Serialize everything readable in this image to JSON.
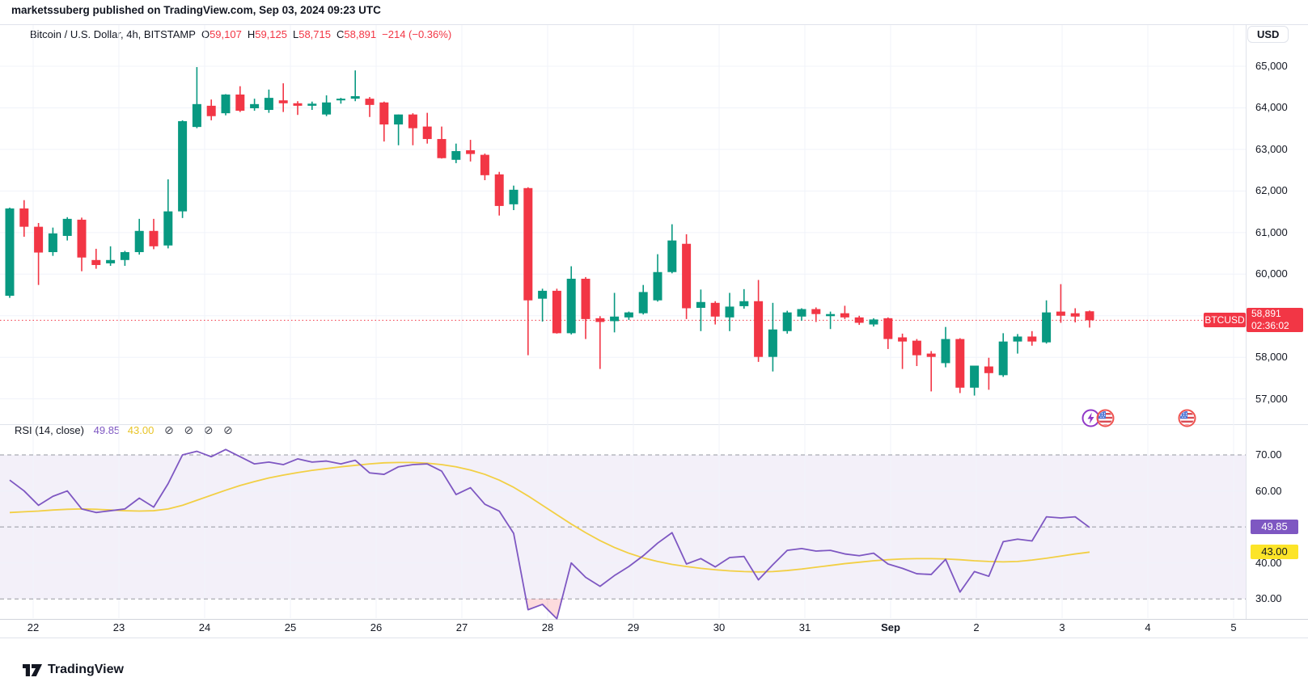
{
  "header": {
    "published_text": "marketssuberg published on TradingView.com, Sep 03, 2024 09:23 UTC"
  },
  "main_legend": {
    "symbol_title": "Bitcoin / U.S. Dollar, 4h, BITSTAMP",
    "ohlc": [
      {
        "label": "O",
        "value": "59,107"
      },
      {
        "label": "H",
        "value": "59,125"
      },
      {
        "label": "L",
        "value": "58,715"
      },
      {
        "label": "C",
        "value": "58,891"
      }
    ],
    "change": "−214 (−0.36%)"
  },
  "currency_button": "USD",
  "last_price": {
    "symbol_tag": "BTCUSD",
    "price": "58,891",
    "countdown": "02:36:02"
  },
  "rsi_legend": {
    "title": "RSI",
    "params": "(14, close)",
    "value": "49.85",
    "ma_value": "43.00",
    "hidden_icon": "⊘"
  },
  "rsi_axis_tags": {
    "value": "49.85",
    "ma": "43.00"
  },
  "event_markers": [
    {
      "icon": "lightning",
      "color": "#9139c8"
    },
    {
      "icon": "us-flag",
      "color": "#ef5350"
    },
    {
      "icon": "us-flag",
      "color": "#ef5350"
    }
  ],
  "footer": {
    "brand": "TradingView"
  },
  "colors": {
    "up": "#089981",
    "down": "#f23645",
    "grid": "#f0f3fa",
    "rsi_line": "#7e57c2",
    "rsi_ma_line": "#f2cf44",
    "rsi_band_fill": "rgba(126,87,194,0.09)",
    "rsi_dash": "#9598a1",
    "oversold_fill": "rgba(242,54,69,0.18)",
    "price_line": "#f23645"
  },
  "chart_data": {
    "type": "candlestick",
    "title": "Bitcoin / U.S. Dollar, 4h, BITSTAMP",
    "symbol": "BTCUSD",
    "exchange": "BITSTAMP",
    "interval": "4h",
    "ohlc_current": {
      "open": 59107,
      "high": 59125,
      "low": 58715,
      "close": 58891,
      "change": -214,
      "change_pct": -0.36
    },
    "price_axis": {
      "min": 57000,
      "max": 65000,
      "tick_step": 1000,
      "labels": [
        "65,000",
        "64,000",
        "63,000",
        "62,000",
        "61,000",
        "60,000",
        "59,000",
        "58,000",
        "57,000"
      ]
    },
    "time_axis_labels": [
      "22",
      "23",
      "24",
      "25",
      "26",
      "27",
      "28",
      "29",
      "30",
      "31",
      "Sep",
      "2",
      "3",
      "4",
      "5"
    ],
    "candles": [
      [
        59480,
        61600,
        59430,
        61580
      ],
      [
        61580,
        61780,
        60900,
        61140
      ],
      [
        61140,
        61230,
        59740,
        60520
      ],
      [
        60530,
        61120,
        60440,
        60980
      ],
      [
        60920,
        61370,
        60810,
        61330
      ],
      [
        61310,
        61360,
        60070,
        60400
      ],
      [
        60340,
        60610,
        60130,
        60220
      ],
      [
        60260,
        60670,
        60200,
        60340
      ],
      [
        60340,
        60560,
        60200,
        60530
      ],
      [
        60530,
        61330,
        60470,
        61040
      ],
      [
        61040,
        61330,
        60600,
        60670
      ],
      [
        60690,
        62280,
        60620,
        61510
      ],
      [
        61510,
        63700,
        61350,
        63680
      ],
      [
        63540,
        64980,
        63510,
        64090
      ],
      [
        64050,
        64200,
        63700,
        63800
      ],
      [
        63870,
        64330,
        63820,
        64320
      ],
      [
        64320,
        64520,
        63900,
        63930
      ],
      [
        63990,
        64220,
        63930,
        64090
      ],
      [
        63950,
        64440,
        63880,
        64240
      ],
      [
        64180,
        64590,
        63900,
        64110
      ],
      [
        64110,
        64160,
        63830,
        64050
      ],
      [
        64050,
        64150,
        63950,
        64100
      ],
      [
        63840,
        64300,
        63800,
        64130
      ],
      [
        64180,
        64240,
        64100,
        64220
      ],
      [
        64220,
        64900,
        64160,
        64280
      ],
      [
        64220,
        64260,
        63780,
        64070
      ],
      [
        64130,
        64150,
        63190,
        63600
      ],
      [
        63600,
        63840,
        63100,
        63840
      ],
      [
        63840,
        63870,
        63100,
        63510
      ],
      [
        63550,
        63880,
        63140,
        63250
      ],
      [
        63250,
        63550,
        62780,
        62790
      ],
      [
        62750,
        63140,
        62670,
        62960
      ],
      [
        62980,
        63230,
        62710,
        62890
      ],
      [
        62870,
        62900,
        62260,
        62380
      ],
      [
        62400,
        62460,
        61410,
        61640
      ],
      [
        61680,
        62130,
        61540,
        62030
      ],
      [
        62070,
        62090,
        58050,
        59370
      ],
      [
        59410,
        59650,
        58860,
        59600
      ],
      [
        59600,
        59650,
        58570,
        58580
      ],
      [
        58580,
        60190,
        58550,
        59890
      ],
      [
        59890,
        59930,
        58440,
        58920
      ],
      [
        58940,
        58990,
        57720,
        58850
      ],
      [
        58870,
        59550,
        58600,
        58980
      ],
      [
        58960,
        59100,
        58900,
        59080
      ],
      [
        59060,
        59740,
        59030,
        59570
      ],
      [
        59370,
        60480,
        59340,
        60050
      ],
      [
        60050,
        61200,
        60020,
        60810
      ],
      [
        60730,
        60960,
        58920,
        59180
      ],
      [
        59190,
        59630,
        58630,
        59330
      ],
      [
        59310,
        59350,
        58790,
        58980
      ],
      [
        58960,
        59550,
        58630,
        59220
      ],
      [
        59230,
        59640,
        59170,
        59350
      ],
      [
        59350,
        59860,
        57890,
        58010
      ],
      [
        58010,
        59310,
        57660,
        58670
      ],
      [
        58630,
        59120,
        58570,
        59080
      ],
      [
        58980,
        59180,
        58880,
        59160
      ],
      [
        59160,
        59200,
        58850,
        59040
      ],
      [
        58990,
        59100,
        58680,
        59040
      ],
      [
        59060,
        59240,
        58920,
        58960
      ],
      [
        58960,
        59000,
        58780,
        58830
      ],
      [
        58790,
        58940,
        58740,
        58910
      ],
      [
        58940,
        58960,
        58200,
        58440
      ],
      [
        58480,
        58570,
        57720,
        58380
      ],
      [
        58400,
        58440,
        57790,
        58050
      ],
      [
        58090,
        58150,
        57180,
        58010
      ],
      [
        57860,
        58730,
        57760,
        58440
      ],
      [
        58440,
        58460,
        57140,
        57270
      ],
      [
        57270,
        57560,
        57080,
        57800
      ],
      [
        57780,
        57990,
        57220,
        57620
      ],
      [
        57570,
        58580,
        57530,
        58380
      ],
      [
        58380,
        58560,
        58090,
        58500
      ],
      [
        58500,
        58630,
        58280,
        58380
      ],
      [
        58360,
        59370,
        58330,
        59080
      ],
      [
        59100,
        59760,
        58830,
        59000
      ],
      [
        59060,
        59180,
        58840,
        58980
      ],
      [
        59107,
        59125,
        58715,
        58891
      ]
    ],
    "last_price": 58891,
    "countdown": "02:36:02",
    "rsi": {
      "period": 14,
      "source": "close",
      "current": 49.85,
      "ma_current": 43.0,
      "levels": {
        "overbought": 70,
        "middle": 50,
        "oversold": 30
      },
      "axis_labels": [
        {
          "text": "70.00",
          "value": 70
        },
        {
          "text": "60.00",
          "value": 60
        },
        {
          "text": "40.00",
          "value": 40
        },
        {
          "text": "30.00",
          "value": 30
        }
      ],
      "values": [
        63,
        60,
        56,
        58.5,
        60,
        55,
        54,
        54.5,
        55,
        58,
        55.5,
        62,
        70,
        71,
        69.5,
        71.5,
        69.5,
        67.5,
        68,
        67.3,
        68.9,
        68,
        68.3,
        67.5,
        68.5,
        65,
        64.6,
        66.7,
        67.3,
        67.5,
        65.5,
        59,
        60.9,
        56.3,
        54.4,
        48.2,
        27,
        28.5,
        24.5,
        40,
        36,
        33.5,
        36.5,
        39,
        42,
        45.5,
        48.4,
        39.7,
        41.2,
        38.9,
        41.5,
        41.8,
        35.3,
        39.5,
        43.5,
        44,
        43.3,
        43.5,
        42.5,
        42,
        42.7,
        39.7,
        38.5,
        37,
        36.8,
        41,
        31.9,
        37.6,
        36.3,
        45.9,
        46.6,
        46.1,
        52.8,
        52.5,
        52.8,
        49.85
      ],
      "ma_values": [
        54,
        54.2,
        54.4,
        54.7,
        54.9,
        55,
        54.9,
        54.7,
        54.5,
        54.4,
        54.5,
        55,
        56,
        57.4,
        58.8,
        60.2,
        61.5,
        62.6,
        63.6,
        64.4,
        65.1,
        65.7,
        66.2,
        66.7,
        67.1,
        67.5,
        67.8,
        67.9,
        67.9,
        67.7,
        67.3,
        66.7,
        65.8,
        64.6,
        63,
        61,
        58.6,
        56,
        53.4,
        50.8,
        48.4,
        46.2,
        44.3,
        42.7,
        41.4,
        40.4,
        39.6,
        39,
        38.5,
        38.1,
        37.8,
        37.6,
        37.5,
        37.6,
        37.9,
        38.3,
        38.8,
        39.3,
        39.8,
        40.2,
        40.6,
        40.9,
        41.1,
        41.2,
        41.2,
        41.1,
        40.9,
        40.6,
        40.4,
        40.3,
        40.4,
        40.8,
        41.3,
        41.9,
        42.5,
        43
      ]
    }
  }
}
